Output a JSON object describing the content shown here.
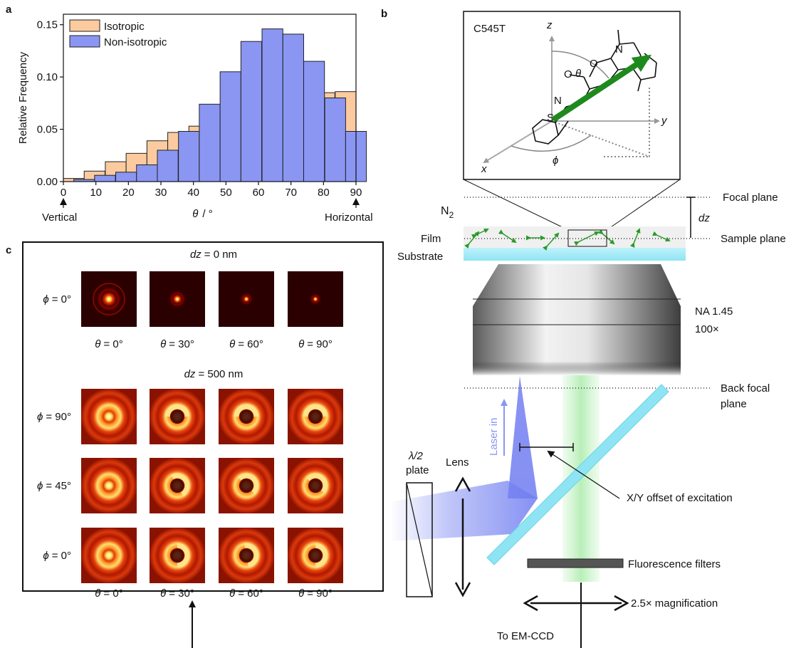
{
  "panels": {
    "a": "a",
    "b": "b",
    "c": "c"
  },
  "chart_data": {
    "type": "bar",
    "xlabel_symbol": "θ",
    "xlabel_unit": "/ °",
    "ylabel": "Relative Frequency",
    "xlim": [
      0,
      90
    ],
    "ylim": [
      0,
      0.16
    ],
    "x_ticks": [
      "0",
      "10",
      "20",
      "30",
      "40",
      "50",
      "60",
      "70",
      "80",
      "90"
    ],
    "y_ticks": [
      "0.00",
      "0.05",
      "0.10",
      "0.15"
    ],
    "x_annotations": {
      "left": "Vertical",
      "right": "Horizontal"
    },
    "bin_width": 6.4,
    "series": [
      {
        "name": "Isotropic",
        "color": "#fbcb9f",
        "bins": [
          {
            "x0": 0.0,
            "value": 0.003
          },
          {
            "x0": 6.4,
            "value": 0.01
          },
          {
            "x0": 12.9,
            "value": 0.019
          },
          {
            "x0": 19.3,
            "value": 0.027
          },
          {
            "x0": 25.7,
            "value": 0.039
          },
          {
            "x0": 32.1,
            "value": 0.047
          },
          {
            "x0": 38.6,
            "value": 0.053
          },
          {
            "x0": 45.0,
            "value": 0.063
          },
          {
            "x0": 51.4,
            "value": 0.07
          },
          {
            "x0": 57.9,
            "value": 0.075
          },
          {
            "x0": 64.3,
            "value": 0.079
          },
          {
            "x0": 70.7,
            "value": 0.084
          },
          {
            "x0": 77.1,
            "value": 0.085
          },
          {
            "x0": 83.6,
            "value": 0.086
          }
        ]
      },
      {
        "name": "Non-isotropic",
        "color": "#8a96f2",
        "bins": [
          {
            "x0": 3.2,
            "value": 0.002
          },
          {
            "x0": 9.6,
            "value": 0.006
          },
          {
            "x0": 16.1,
            "value": 0.009
          },
          {
            "x0": 22.5,
            "value": 0.016
          },
          {
            "x0": 28.9,
            "value": 0.03
          },
          {
            "x0": 35.4,
            "value": 0.048
          },
          {
            "x0": 41.8,
            "value": 0.074
          },
          {
            "x0": 48.2,
            "value": 0.105
          },
          {
            "x0": 54.6,
            "value": 0.134
          },
          {
            "x0": 61.1,
            "value": 0.146
          },
          {
            "x0": 67.5,
            "value": 0.141
          },
          {
            "x0": 73.9,
            "value": 0.115
          },
          {
            "x0": 80.4,
            "value": 0.08
          },
          {
            "x0": 86.8,
            "value": 0.048
          }
        ]
      }
    ]
  },
  "panel_c": {
    "section1_title": "= 0 nm",
    "section2_title": "= 500 nm",
    "dz_symbol": "dz",
    "phi_symbol": "ϕ",
    "theta_symbol": "θ",
    "theta_labels": [
      "= 0°",
      "= 30°",
      "= 60°",
      "= 90°"
    ],
    "row_labels": [
      "= 0°",
      "= 90°",
      "= 45°",
      "= 0°"
    ]
  },
  "panel_b": {
    "molecule_label": "C545T",
    "axis_x": "x",
    "axis_y": "y",
    "axis_z": "z",
    "angle_theta": "θ",
    "angle_phi": "ϕ",
    "atom_N1": "N",
    "atom_N2": "N",
    "atom_O1": "O",
    "atom_O2": "O",
    "atom_S": "S",
    "focal_plane": "Focal plane",
    "sample_plane": "Sample plane",
    "dz": "dz",
    "n2": "N",
    "n2_sub": "2",
    "film": "Film",
    "substrate": "Substrate",
    "na": "NA 1.45",
    "mag": "100×",
    "back_focal_1": "Back focal",
    "back_focal_2": "plane",
    "laser_in": "Laser in",
    "half_wave_1": "λ/2",
    "half_wave_2": "plate",
    "lens": "Lens",
    "offset": "X/Y offset of excitation",
    "filters": "Fluorescence filters",
    "magnification": "2.5× magnification",
    "to_ccd": "To EM-CCD"
  }
}
